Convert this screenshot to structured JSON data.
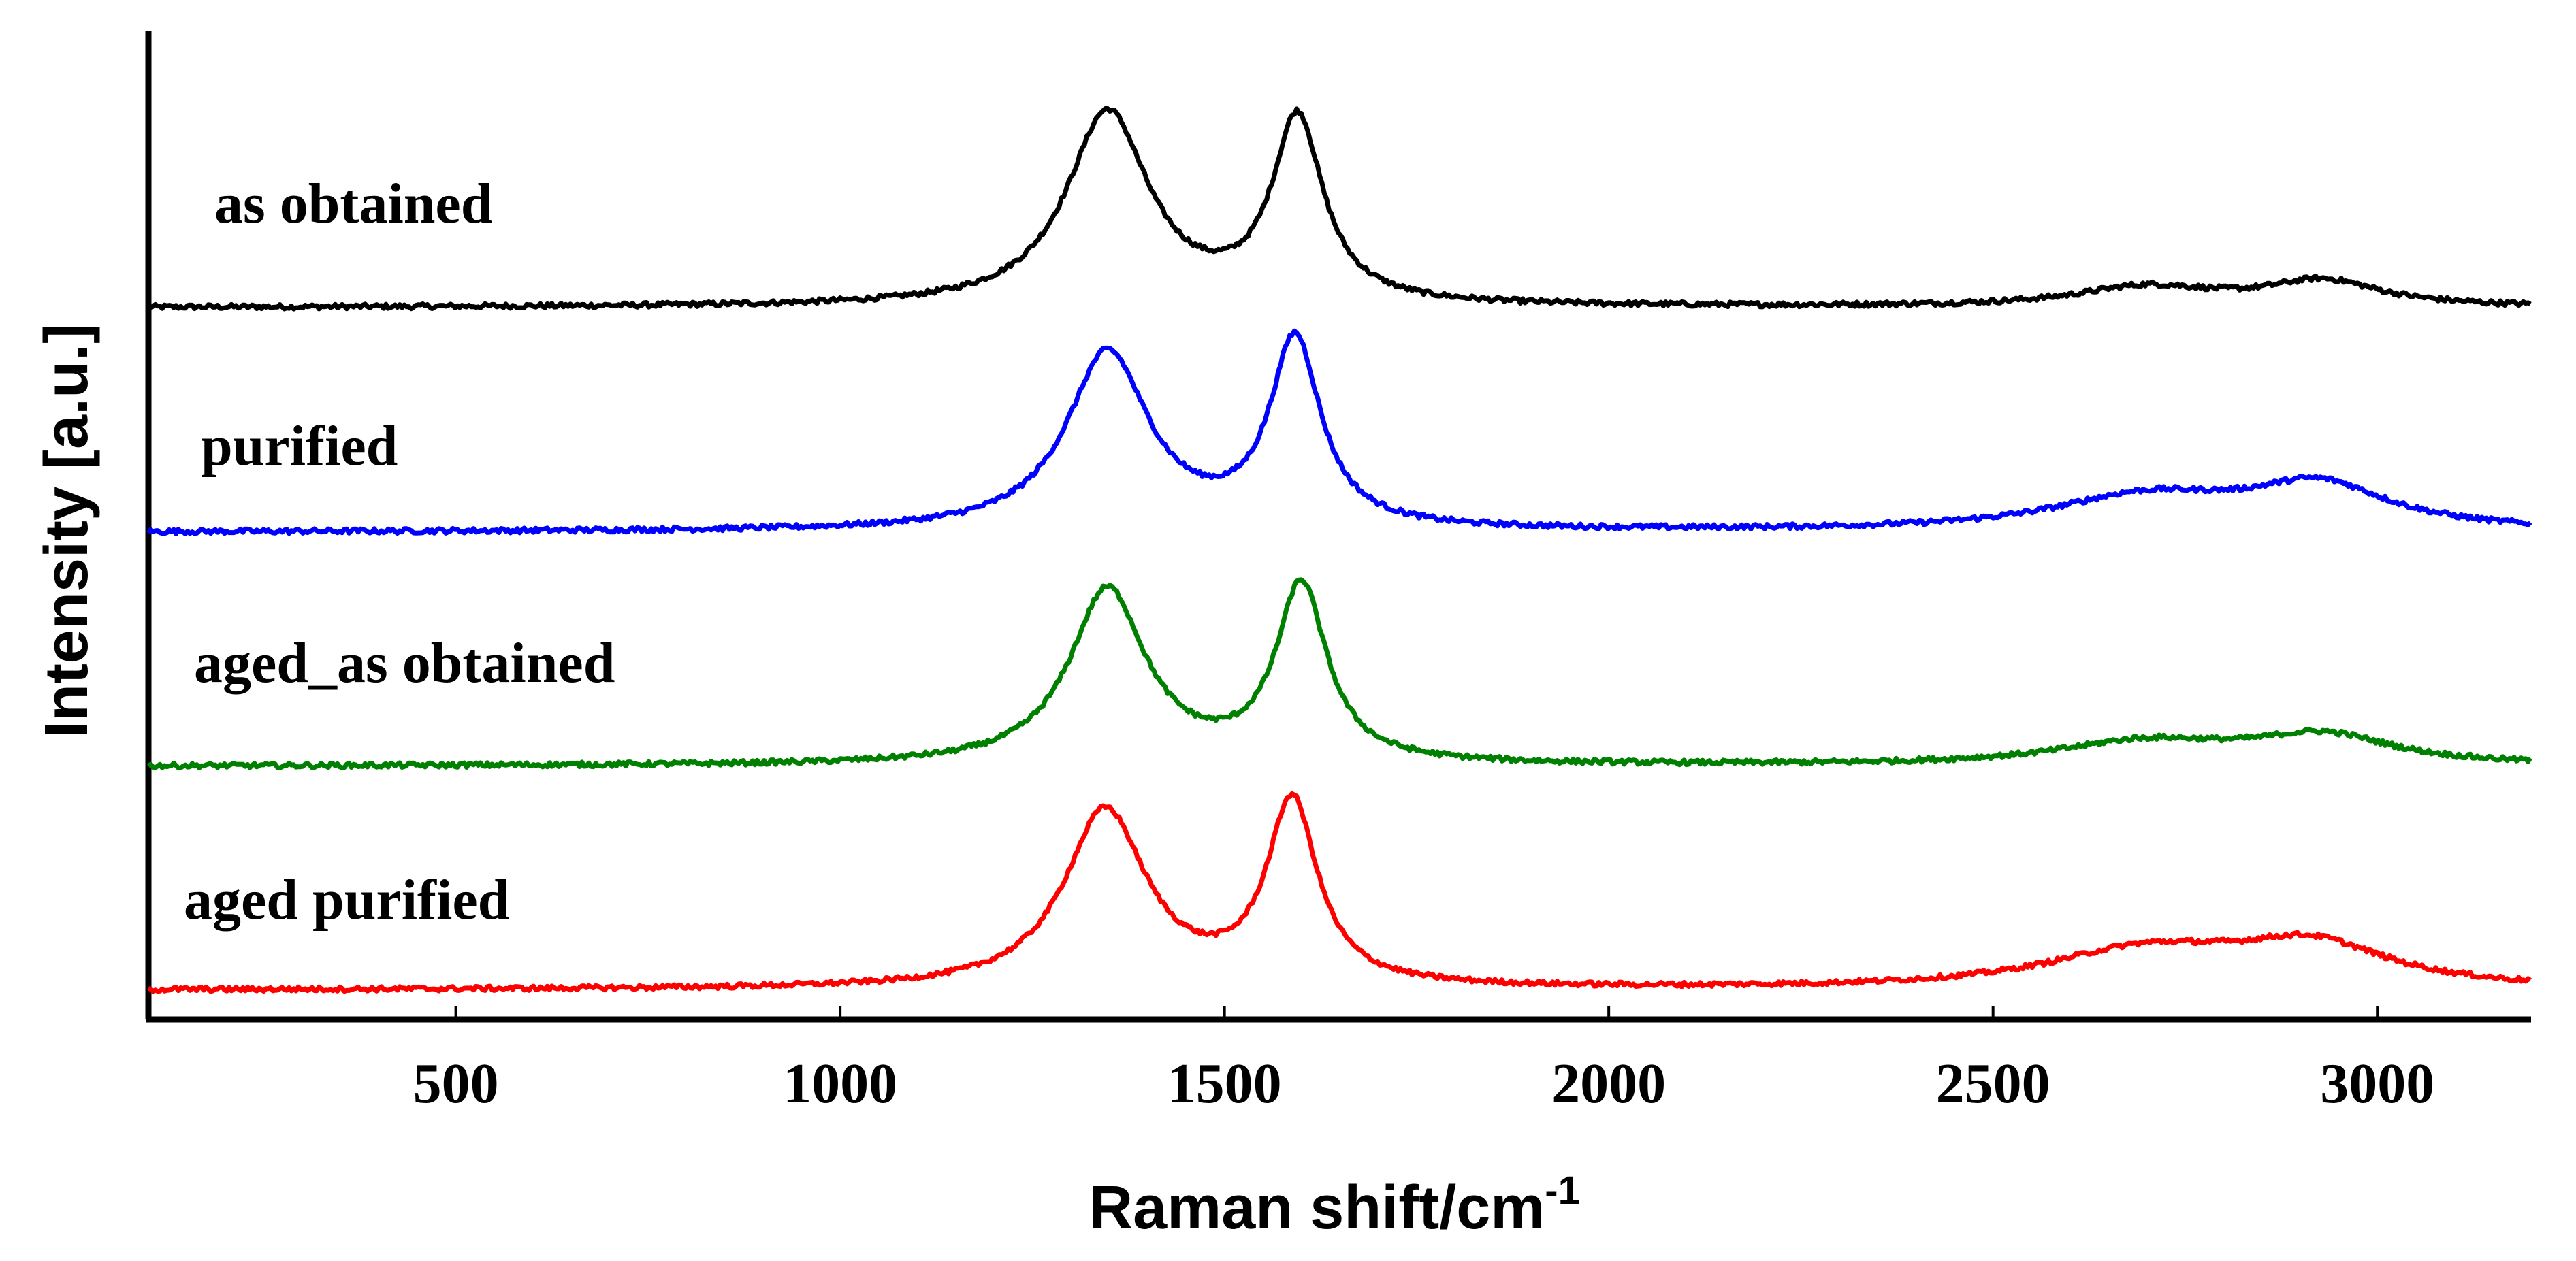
{
  "chart_data": {
    "type": "line",
    "title": "",
    "xlabel": "Raman shift/cm",
    "xlabel_superscript": "-1",
    "ylabel": "Intensity [a.u.]",
    "xlim": [
      100,
      3200
    ],
    "xticks": [
      500,
      1000,
      1500,
      2000,
      2500,
      3000
    ],
    "y_stacked": true,
    "series": [
      {
        "name": "as obtained",
        "color": "#000000",
        "x_range": [
          100,
          3200
        ],
        "baseline": 0,
        "peaks": [
          {
            "center": 1348,
            "height": 1.0,
            "width": 65
          },
          {
            "center": 1595,
            "height": 0.95,
            "width": 40
          },
          {
            "center": 2700,
            "height": 0.1,
            "width": 110
          },
          {
            "center": 2930,
            "height": 0.13,
            "width": 90
          }
        ]
      },
      {
        "name": "purified",
        "color": "#0000ff",
        "x_range": [
          100,
          3200
        ],
        "baseline": 0,
        "peaks": [
          {
            "center": 1348,
            "height": 0.9,
            "width": 65
          },
          {
            "center": 1592,
            "height": 0.95,
            "width": 40
          },
          {
            "center": 2700,
            "height": 0.17,
            "width": 150
          },
          {
            "center": 2925,
            "height": 0.22,
            "width": 110
          }
        ]
      },
      {
        "name": "aged_as obtained",
        "color": "#008000",
        "x_range": [
          100,
          3200
        ],
        "baseline": 0,
        "peaks": [
          {
            "center": 1348,
            "height": 0.92,
            "width": 60
          },
          {
            "center": 1600,
            "height": 0.93,
            "width": 40
          },
          {
            "center": 2700,
            "height": 0.12,
            "width": 140
          },
          {
            "center": 2930,
            "height": 0.15,
            "width": 110
          }
        ]
      },
      {
        "name": "aged purified",
        "color": "#ff0000",
        "x_range": [
          100,
          3200
        ],
        "baseline": 0,
        "peaks": [
          {
            "center": 1345,
            "height": 0.95,
            "width": 65
          },
          {
            "center": 1588,
            "height": 0.98,
            "width": 40
          },
          {
            "center": 2700,
            "height": 0.2,
            "width": 160
          },
          {
            "center": 2915,
            "height": 0.22,
            "width": 120
          }
        ]
      }
    ]
  }
}
